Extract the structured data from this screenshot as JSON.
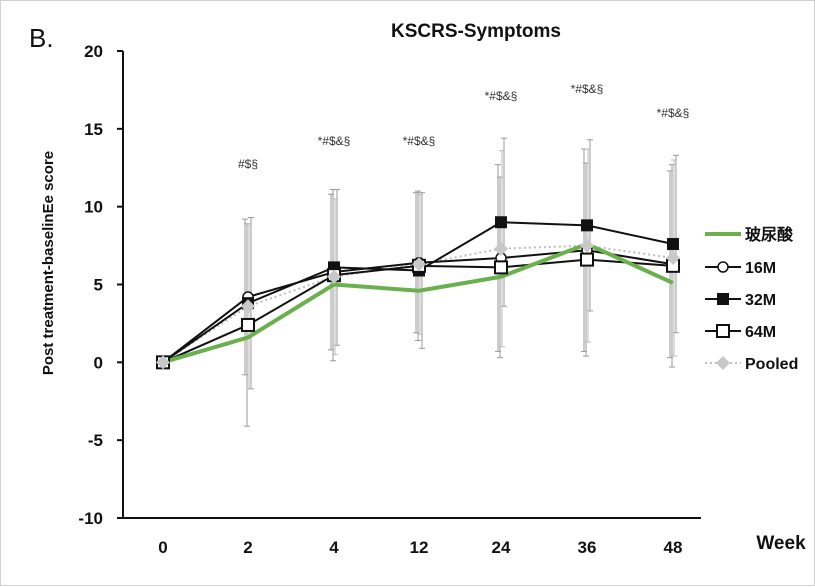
{
  "panel_label": "B.",
  "chart_data": {
    "type": "line",
    "title": "KSCRS-Symptoms",
    "xlabel": "Week",
    "ylabel": "Post treatment-baselinEe score",
    "categories": [
      "0",
      "2",
      "4",
      "12",
      "24",
      "36",
      "48"
    ],
    "ylim": [
      -10,
      20
    ],
    "yticks": [
      -10,
      -5,
      0,
      5,
      10,
      15,
      20
    ],
    "grid": false,
    "legend_position": "right",
    "significance": [
      "",
      "#$§",
      "*#$&§",
      "*#$&§",
      "*#$&§",
      "*#$&§",
      "*#$&§"
    ],
    "series": [
      {
        "name": "玻尿酸",
        "color": "#6ab04c",
        "marker": "none",
        "style": "thick",
        "values": [
          0,
          1.6,
          5.0,
          4.6,
          5.5,
          7.6,
          5.1
        ]
      },
      {
        "name": "16M",
        "color": "#111111",
        "marker": "open-circle",
        "style": "solid",
        "values": [
          0,
          4.2,
          5.8,
          6.4,
          6.7,
          7.2,
          6.3
        ],
        "error": [
          0,
          5.0,
          5.0,
          4.5,
          6.0,
          6.5,
          6.0
        ]
      },
      {
        "name": "32M",
        "color": "#111111",
        "marker": "filled-square",
        "style": "solid",
        "values": [
          0,
          3.8,
          6.1,
          5.9,
          9.0,
          8.8,
          7.6
        ],
        "error": [
          0,
          5.5,
          5.0,
          5.0,
          5.4,
          5.5,
          5.7
        ]
      },
      {
        "name": "64M",
        "color": "#111111",
        "marker": "open-square",
        "style": "solid",
        "values": [
          0,
          2.4,
          5.6,
          6.2,
          6.1,
          6.6,
          6.2
        ],
        "error": [
          0,
          6.5,
          5.5,
          4.8,
          5.8,
          6.2,
          6.5
        ]
      },
      {
        "name": "Pooled",
        "color": "#bdbdbd",
        "marker": "gray-diamond",
        "style": "dotted",
        "values": [
          0,
          3.6,
          5.5,
          6.3,
          7.3,
          7.5,
          6.7
        ],
        "error": [
          0,
          5.3,
          5.0,
          4.5,
          6.3,
          6.2,
          6.3
        ]
      }
    ]
  }
}
